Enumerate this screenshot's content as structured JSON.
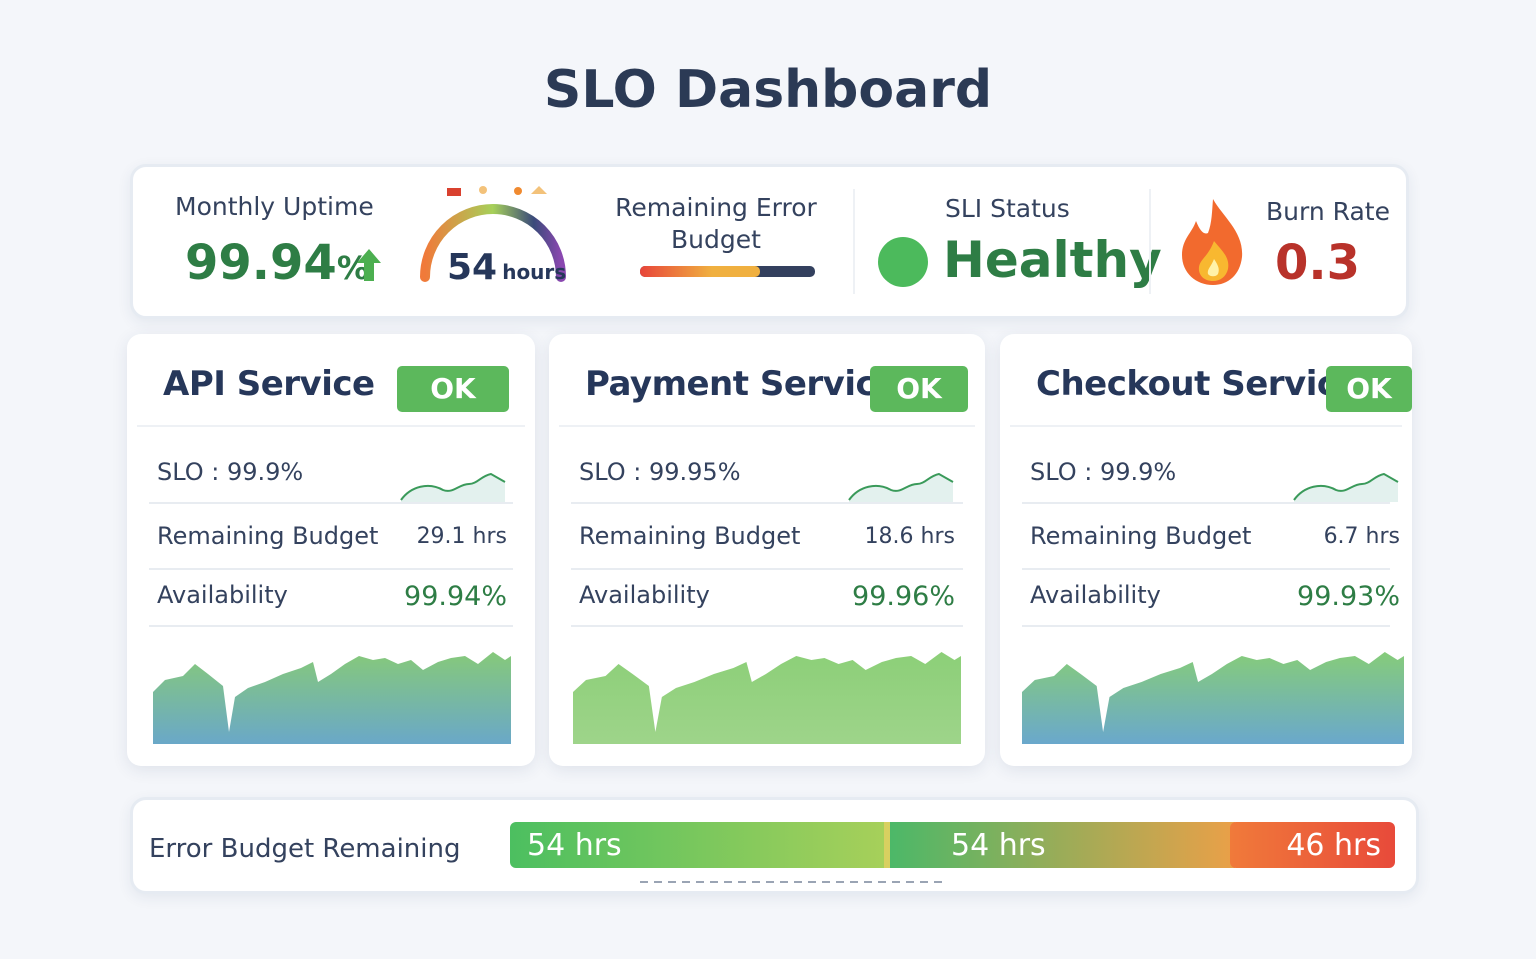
{
  "title": "SLO Dashboard",
  "summary": {
    "monthly_uptime": {
      "label": "Monthly Uptime",
      "value": "99.94",
      "unit": "%"
    },
    "gauge": {
      "value": "54",
      "unit": "hours"
    },
    "remaining_error_budget": {
      "label": "Remaining Error Budget"
    },
    "sli_status": {
      "label": "SLI Status",
      "value": "Healthy"
    },
    "burn_rate": {
      "label": "Burn Rate",
      "value": "0.3"
    }
  },
  "services": [
    {
      "name": "API Service",
      "status": "OK",
      "slo": "SLO : 99.9%",
      "remaining_budget": {
        "label": "Remaining Budget",
        "value": "29.1 hrs"
      },
      "availability": {
        "label": "Availability",
        "value": "99.94%"
      }
    },
    {
      "name": "Payment Service",
      "status": "OK",
      "slo": "SLO : 99.95%",
      "remaining_budget": {
        "label": "Remaining Budget",
        "value": "18.6 hrs"
      },
      "availability": {
        "label": "Availability",
        "value": "99.96%"
      }
    },
    {
      "name": "Checkout Service",
      "status": "OK",
      "slo": "SLO : 99.9%",
      "remaining_budget": {
        "label": "Remaining Budget",
        "value": "6.7 hrs"
      },
      "availability": {
        "label": "Availability",
        "value": "99.93%"
      }
    }
  ],
  "error_budget_bar": {
    "label": "Error Budget Remaining",
    "segments": [
      "54 hrs",
      "54 hrs",
      "46 hrs"
    ]
  }
}
